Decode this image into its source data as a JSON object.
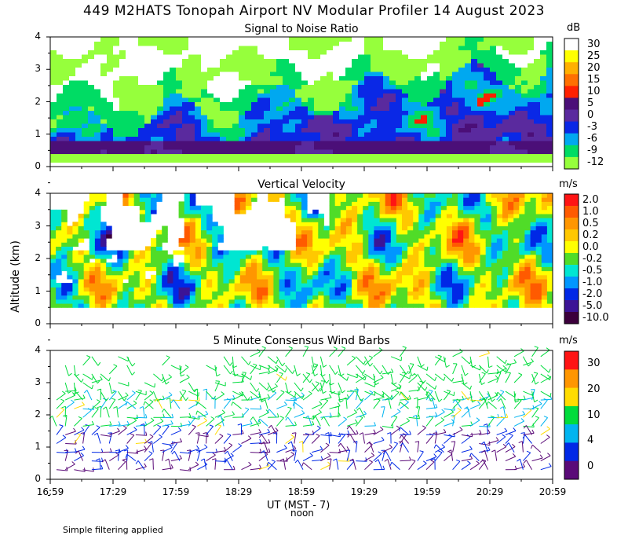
{
  "header": {
    "title": "449 M2HATS Tonopah Airport NV Modular Profiler 14 August 2023"
  },
  "y_axis": {
    "label": "Altitude (km)",
    "ticks": [
      "0",
      "1",
      "2",
      "3",
      "4"
    ]
  },
  "x_axis": {
    "label": "UT   (MST - 7)",
    "sublabel": "noon",
    "ticks": [
      "16:59",
      "17:29",
      "17:59",
      "18:29",
      "18:59",
      "19:29",
      "19:59",
      "20:29",
      "20:59"
    ]
  },
  "footer": {
    "note": "Simple filtering applied"
  },
  "chart_data": [
    {
      "type": "heatmap",
      "title": "Signal to Noise Ratio",
      "xlabel": "UT (MST - 7)",
      "ylabel": "Altitude (km)",
      "ylim": [
        0,
        4
      ],
      "xlim": [
        "16:59",
        "20:59"
      ],
      "colorbar": {
        "unit": "dB",
        "levels": [
          "30",
          "25",
          "20",
          "15",
          "10",
          "5",
          "0",
          "-3",
          "-6",
          "-9",
          "-12"
        ],
        "colors": [
          "#ffffff",
          "#ffff00",
          "#ffb000",
          "#ff7000",
          "#ff2000",
          "#4b0f78",
          "#5a2a9e",
          "#0a28e6",
          "#00a8f0",
          "#00dc64",
          "#96ff3c"
        ]
      }
    },
    {
      "type": "heatmap",
      "title": "Vertical Velocity",
      "xlabel": "UT (MST - 7)",
      "ylabel": "Altitude (km)",
      "ylim": [
        0,
        4
      ],
      "xlim": [
        "16:59",
        "20:59"
      ],
      "colorbar": {
        "unit": "m/s",
        "levels": [
          "2.0",
          "1.0",
          "0.5",
          "0.2",
          "0.0",
          "-0.2",
          "-0.5",
          "-1.0",
          "-2.0",
          "-5.0",
          "-10.0"
        ],
        "colors": [
          "#ff1414",
          "#ff5a00",
          "#ff9600",
          "#ffc800",
          "#ffff00",
          "#50dc28",
          "#00e6d2",
          "#0096ff",
          "#0028e6",
          "#3c1496",
          "#3c003c"
        ]
      }
    },
    {
      "type": "scatter",
      "title": "5 Minute Consensus Wind Barbs",
      "xlabel": "UT (MST - 7)",
      "ylabel": "Altitude (km)",
      "ylim": [
        0,
        4
      ],
      "xlim": [
        "16:59",
        "20:59"
      ],
      "colorbar": {
        "unit": "m/s",
        "levels": [
          "30",
          "20",
          "10",
          "4",
          "0"
        ],
        "colors": [
          "#ff1414",
          "#ff9600",
          "#ffdc00",
          "#00dc3c",
          "#00b4f0",
          "#0028e6",
          "#5a0a78"
        ]
      }
    }
  ]
}
